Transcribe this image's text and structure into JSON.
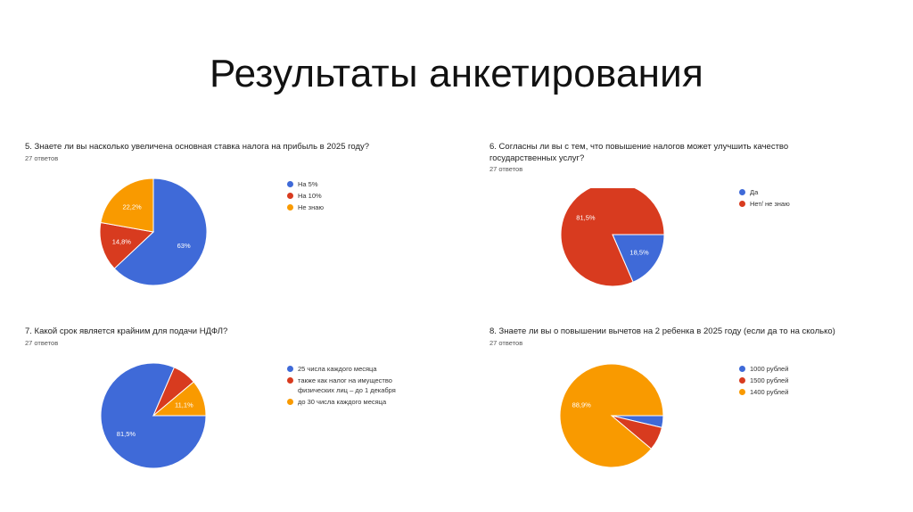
{
  "page": {
    "title": "Результаты анкетирования"
  },
  "chart_data": [
    {
      "type": "pie",
      "title": "5. Знаете ли вы насколько увеличена основная ставка налога на прибыль в 2025 году?",
      "subtitle": "27 ответов",
      "legend_position": "right",
      "start_angle": 90,
      "labels": [
        "На 5%",
        "На 10%",
        "Не знаю"
      ],
      "values": [
        63,
        14.8,
        22.2
      ],
      "value_labels": [
        "63%",
        "14,8%",
        "22,2%"
      ],
      "colors": [
        "#3f6ad8",
        "#d83b1f",
        "#f99a00"
      ],
      "label_colors": [
        "#ffffff",
        "#ffffff",
        "#ffffff"
      ]
    },
    {
      "type": "pie",
      "title": "6. Согласны ли вы с тем, что повышение налогов может улучшить качество государственных услуг?",
      "subtitle": "27 ответов",
      "legend_position": "right",
      "start_angle": 0,
      "labels": [
        "Да",
        "Нет/ не знаю"
      ],
      "values": [
        18.5,
        81.5
      ],
      "value_labels": [
        "18,5%",
        "81,5%"
      ],
      "colors": [
        "#3f6ad8",
        "#d83b1f"
      ],
      "label_colors": [
        "#ffffff",
        "#ffffff"
      ]
    },
    {
      "type": "pie",
      "title": "7. Какой срок является крайним для подачи НДФЛ?",
      "subtitle": "27 ответов",
      "legend_position": "right",
      "start_angle": 0,
      "labels": [
        "25 числа каждого месяца",
        "также как налог на имущество\nфизических лиц – до 1 декабря",
        "до 30 числа каждого месяца"
      ],
      "values": [
        81.5,
        7.4,
        11.1
      ],
      "value_labels": [
        "81,5%",
        "",
        "11,1%"
      ],
      "colors": [
        "#3f6ad8",
        "#d83b1f",
        "#f99a00"
      ],
      "label_colors": [
        "#ffffff",
        "#ffffff",
        "#ffffff"
      ]
    },
    {
      "type": "pie",
      "title": "8. Знаете ли вы о повышении вычетов на 2 ребенка в 2025 году (если да то на сколько)",
      "subtitle": "27 ответов",
      "legend_position": "right",
      "start_angle": 0,
      "labels": [
        "1000 рублей",
        "1500 рублей",
        "1400 рублей"
      ],
      "values": [
        3.7,
        7.4,
        88.9
      ],
      "value_labels": [
        "",
        "",
        "88,9%"
      ],
      "colors": [
        "#3f6ad8",
        "#d83b1f",
        "#f99a00"
      ],
      "label_colors": [
        "#ffffff",
        "#ffffff",
        "#ffffff"
      ]
    }
  ]
}
